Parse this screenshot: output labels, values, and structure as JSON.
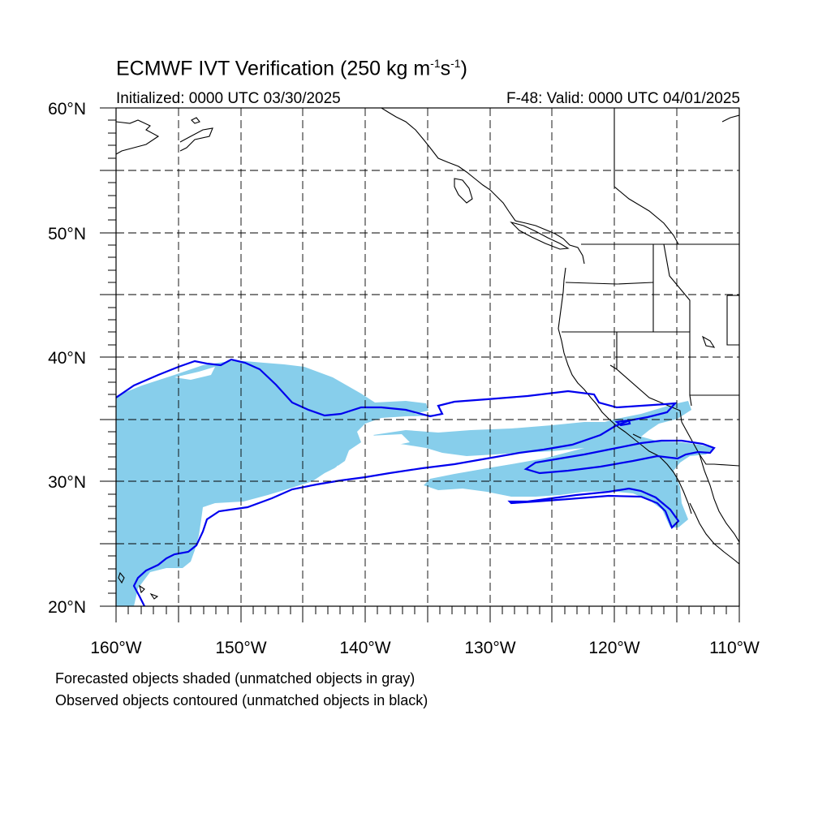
{
  "title": {
    "text": "ECMWF IVT Verification (250 kg m",
    "sup1": "-1",
    "mid": "s",
    "sup2": "-1",
    "end": ")"
  },
  "initialized": "Initialized: 0000 UTC 03/30/2025",
  "valid": "F-48: Valid: 0000 UTC 04/01/2025",
  "map": {
    "lon_range": [
      -160,
      -110
    ],
    "lat_range": [
      20,
      60
    ],
    "grid": true,
    "lat_labels": [
      "20°N",
      "30°N",
      "40°N",
      "50°N",
      "60°N"
    ],
    "lon_labels": [
      "160°W",
      "150°W",
      "140°W",
      "130°W",
      "120°W",
      "110°W"
    ],
    "colors": {
      "forecast_fill": "#87ceeb",
      "observed_contour": "#0000ee",
      "coast": "#000000"
    }
  },
  "notes": {
    "line1": "Forecasted objects shaded (unmatched objects in gray)",
    "line2": "Observed objects contoured (unmatched objects in black)"
  }
}
